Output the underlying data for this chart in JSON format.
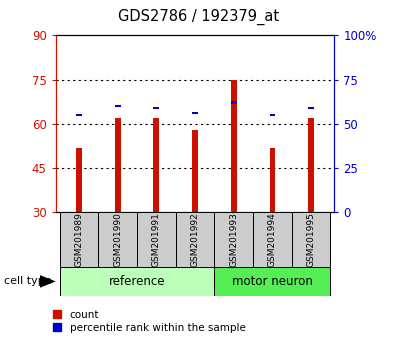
{
  "title": "GDS2786 / 192379_at",
  "categories": [
    "GSM201989",
    "GSM201990",
    "GSM201991",
    "GSM201992",
    "GSM201993",
    "GSM201994",
    "GSM201995"
  ],
  "count_values": [
    52,
    62,
    62,
    58,
    75,
    52,
    62
  ],
  "percentile_values": [
    55,
    60,
    59,
    56,
    62,
    55,
    59
  ],
  "ylim_left": [
    30,
    90
  ],
  "ylim_right": [
    0,
    100
  ],
  "yticks_left": [
    30,
    45,
    60,
    75,
    90
  ],
  "yticks_right": [
    0,
    25,
    50,
    75,
    100
  ],
  "ytick_labels_right": [
    "0",
    "25",
    "50",
    "75",
    "100%"
  ],
  "bar_color": "#cc1100",
  "percentile_color": "#0000cc",
  "bar_width": 0.15,
  "group_reference": [
    0,
    1,
    2,
    3
  ],
  "group_motor": [
    4,
    5,
    6
  ],
  "ref_label": "reference",
  "motor_label": "motor neuron",
  "cell_type_label": "cell type",
  "legend_count": "count",
  "legend_percentile": "percentile rank within the sample",
  "ref_color": "#bbffbb",
  "motor_color": "#55ee55",
  "tick_bg_color": "#cccccc",
  "background_color": "#ffffff"
}
